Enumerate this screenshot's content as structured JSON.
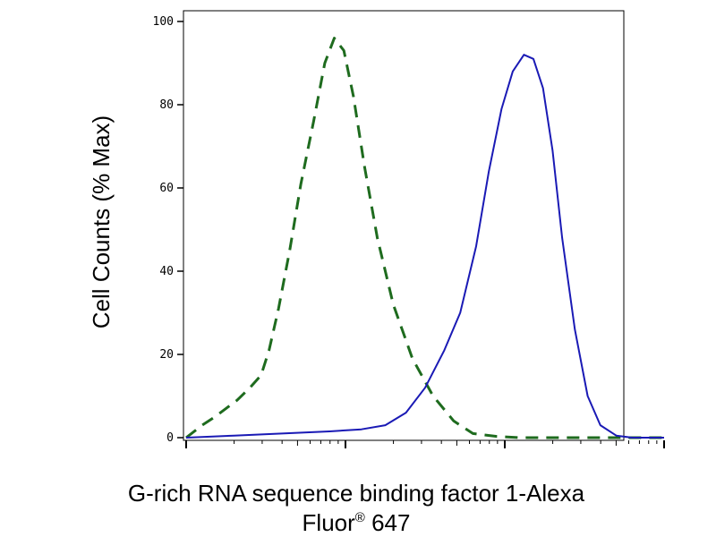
{
  "chart_data": {
    "type": "line",
    "title": "",
    "ylabel": "Cell Counts (% Max)",
    "xlabel_line1": "G-rich RNA sequence binding factor 1-Alexa",
    "xlabel_line2_main": "Fluor",
    "xlabel_line2_sup": "®",
    "xlabel_line2_rest": " 647",
    "x_scale": "log",
    "x_log_range": [
      0,
      3
    ],
    "ylim": [
      0,
      100
    ],
    "y_ticks": [
      0,
      20,
      40,
      60,
      80,
      100
    ],
    "y_tick_labels": [
      "0",
      "20",
      "40",
      "60",
      "80",
      "100"
    ],
    "grid": false,
    "legend": "none",
    "series": [
      {
        "style": "dashed",
        "color": "#1e6b1e",
        "x": [
          0.0,
          0.1,
          0.18,
          0.25,
          0.32,
          0.4,
          0.47,
          0.52,
          0.58,
          0.65,
          0.72,
          0.8,
          0.87,
          0.93,
          0.99,
          1.05,
          1.12,
          1.2,
          1.3,
          1.42,
          1.55,
          1.68,
          1.8,
          1.95,
          2.1,
          2.3,
          2.5,
          2.8,
          3.0
        ],
        "y": [
          0,
          3,
          5,
          7,
          9,
          12,
          15,
          21,
          31,
          45,
          61,
          76,
          90,
          96,
          93,
          82,
          65,
          48,
          32,
          19,
          10,
          4,
          1,
          0.3,
          0,
          0,
          0,
          0,
          0
        ]
      },
      {
        "style": "solid",
        "color": "#1a1ab5",
        "x": [
          0.0,
          0.3,
          0.6,
          0.9,
          1.1,
          1.25,
          1.38,
          1.5,
          1.62,
          1.72,
          1.82,
          1.9,
          1.98,
          2.05,
          2.12,
          2.18,
          2.24,
          2.3,
          2.36,
          2.44,
          2.52,
          2.6,
          2.7,
          2.8,
          3.0
        ],
        "y": [
          0,
          0.5,
          1,
          1.5,
          2,
          3,
          6,
          12,
          21,
          30,
          46,
          64,
          79,
          88,
          92,
          91,
          84,
          69,
          48,
          26,
          10,
          3,
          0.5,
          0,
          0
        ]
      }
    ]
  }
}
